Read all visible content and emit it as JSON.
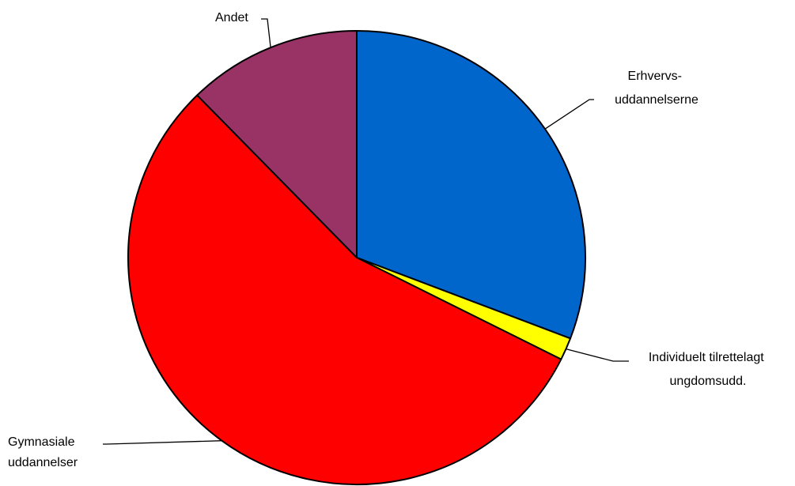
{
  "chart_data": {
    "type": "pie",
    "title": "",
    "slices": [
      {
        "label_lines": [
          "Erhvervs-",
          "uddannelserne"
        ],
        "value": 30.8,
        "color": "#0066CC"
      },
      {
        "label_lines": [
          "Individuelt tilrettelagt",
          "ungdomsudd."
        ],
        "value": 1.6,
        "color": "#FFFF00"
      },
      {
        "label_lines": [
          "Gymnasiale",
          "uddannelser"
        ],
        "value": 55.3,
        "color": "#FF0000"
      },
      {
        "label_lines": [
          "Andet"
        ],
        "value": 12.3,
        "color": "#993366"
      }
    ],
    "start": "12 o'clock",
    "direction": "clockwise",
    "legend": "none",
    "data_labels": "category names with leader lines"
  }
}
